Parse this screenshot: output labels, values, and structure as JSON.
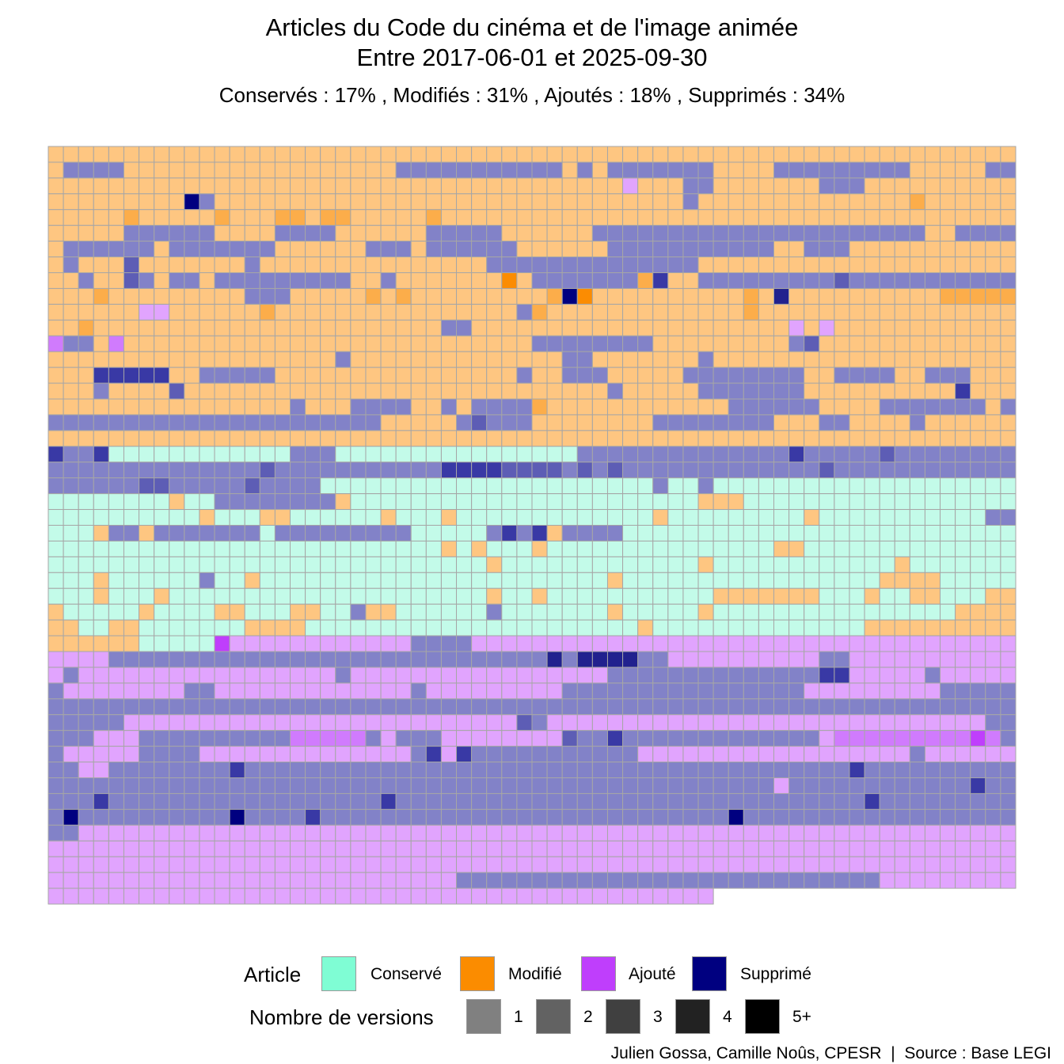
{
  "chart_data": {
    "type": "heatmap",
    "title": "Articles du Code du cinéma et de l'image animée",
    "title_line2": "Entre 2017-06-01 et 2025-09-30",
    "subtitle": "Conservés :  17% , Modifiés :  31% , Ajoutés :  18% , Supprimés :  34%",
    "share": {
      "Conservé": 17,
      "Modifié": 31,
      "Ajouté": 18,
      "Supprimé": 34
    },
    "columns": 64,
    "last_row_cells": 44,
    "status_codes": {
      "C": "Conservé",
      "M": "Modifié",
      "A": "Ajouté",
      "S": "Supprimé"
    },
    "version_codes": "digit 1-5 after status code = nombre de versions (5 = 5+)",
    "status_colors": {
      "C": [
        "#c3fbe9",
        "#8af6d4",
        "#7fd9bd",
        "#5aa08a",
        "#34695a"
      ],
      "M": [
        "#fec681",
        "#fcad4a",
        "#fb8c02",
        "#c46c00",
        "#8a4c00"
      ],
      "A": [
        "#e1a4fe",
        "#d07bfd",
        "#bf3efc",
        "#9a2fd0",
        "#6a1f90"
      ],
      "S": [
        "#8282c8",
        "#5d5db5",
        "#3939a5",
        "#21218e",
        "#000080"
      ]
    },
    "rows": [
      "M1*64",
      "M1 S1*4 M1*18 S1*11 M1 S1 M1 S1*7 M1*4 S1*9 M1*5 S1*3 M1",
      "M1*38 A1 M1*3 S1 S1 M1*7 S1*3 M1*10",
      "M1*9 S5 S1 M1*11 M1*3 M1 M1*16 S1 M1*4 M1*10 M2 M1*5",
      "M1 M1 M1 M1 M1 M2 M1 M1 M1 M1 M1 M2 M1 M1 M1 M2 M2 M1 M2 M2 M1*3 M1 M1 M2 M1*38",
      "M1*5 S1*6 M1*4 S1*4 M1*6 S1*5 M1*6 S1*22 M1*2 S1*10",
      "M1 S1*6 M1 S1*7 M1*5 M1 S1*3 M1 S1*6 M1*6 S1*11 M1 M1 S1*3 M1*5 M1*4 M1 M1 M1",
      "M1 S1 M1*3 S2 M1*7 S1 M1*9 M1 M1*4 M1 S1*14 M1 M1*13 M1*8",
      "M1 M1 S1 M1 M1 S2 S1 M1 S1 S1 M1 S1*9 M1*2 S1 M1*5 M1*2 M3 M1 S1*7 M2 S3 M1 M1 S1*9 S2 S1 S1*13",
      "M1*3 M2 M1*9 S1*3 M1*5 M2 M1 M2 M1*8 M1 M2 S5 M3 M1*10 M2 M1 S4 M1*10 M2",
      "M1*6 A1 A1 M1 M1 M1 M1 M1 M1 M2 M1 M1 M1 M1 M1 M1 M1 M1 M1 M1 M1 M1 M1 M1 M1 M1 S1 M2 M1*12 M1 M2 M1 M1 M1*14",
      "M1 M1 M2 M1 M1 M1 M1 M1 M1 M1 M1 M1 M1 M1 M1 M1 M1 M1 M1 M1 M1 M1 M1 M1 M1 M1 S1 S1 M1 M1 M1 M1 M1 M1 M1 M1 M1 M1 M1 M1 M1 M1 M1 M1 M1 M1 M1 M1 M1 A1 M1 A1 M1 M1 M1 M1 M1 M1 M1 M1 M1 M1 M1 M1",
      "A2 S1 S1 M1 A2 M1*3 M1*9 M1*3 M1*10 M1*2 S1*8 M1*8 M1 S1 S2 M1*10 M1 M1*4",
      "M1*12 M1 M1*6 S1 M1 M1 M1*2 M1*10 S1*2 M1*5 M1*2 S1 M1 M1*12 M1 M1",
      "M1 M1 M1 S3 S3 S3 S3 S3 M1 M1 S1*5 M1 M1 M1 M1 M1 M1 M1 M1 M1 M1 M1 M1 M1 M1 M1 M1 S1 M1 M1 S1*3 M1 M1 M1 M1 M1 S1*8 M1 M1 S1*4 M1 M1 S1*3 M1 M1 M1",
      "M1 M1 M1 S1 M1 M1 M1 M1 S2 M1*17 M1*4 M1 M1*6 S1 M1*5 S1*6 S1 M1*2 M1*8 S3 M1 M1",
      "M1*16 S1 M1 M1*2 S1*4 M1 M1 S1 M1 S1*4 M2 M1*12 S1*6 M1*4 S1*7 M1 S1",
      "S1*7 S1 S1 S1 S1 S1*7 S1*4 M1 M1*3 M1 S1 S2 S1*2 S1 M1*7 M1 S1*8 M1*3 S1 S1 M1*4 S1 M1*3 M1 M1 M1*5 S1*6 S3 S1 S3",
      "M1*4 M1 M1 M1 M1 M1 M1*3 M1 M1 M1 M1 M1 M1 M1 M1 M1 M1 M1 M1 M1 M1 M1 M1 M1 M1 M1 M1 M1 M1 M1 M1 M1 M1 M1 M1 M1 M1 M1 M1 M1 M1 M1 M1 M1 M1 M1 M1 M1 M1 M1 M1 M1 M1 M1 M1 M1 M1 M1 M1",
      "S3 S1 S1 S3 C1*12 S1 S1 S1 C1*16 S1*12 S1 S1 S3 S1*5 S2 S1*9",
      "S1*4 S1*3 S1*4 S1 S1 S1 S2 S1 S1 S1*4 S1*5 S3 S3 S3 S3 S2 S2 S2 S2 S1 S2 S1 S2 S1 S1 S1*3 S1*5 S1*3 S2 S1*2 S1*8",
      "S1*6 S2 S2 S1*3 S1 S1 S2 S1 S1 S1 S1 C1*8 C1*10 C1*4 S1 C1*2 S1 C1*26",
      "C1*8 M1 C1*2 S1*8 M1 C1*7 C1*10 C1*6 M1 M1 M1 C1*23 M1",
      "C1*10 M1 C1*3 M1 M1 C1*6 M1 C1*3 M1 C1*13 M1 C1*9 M1 C1*4 C1*7 S1 S1 C1*2 M1 M1 M1 M1 C1",
      "C1*3 M1 S1*2 M1 S1*7 C1 S1*8 S1 C1*5 S1 S3 S1 S3 M1 S1*4 C1*31",
      "C1*10 C1*16 M1 C1 M1 C1*2 C1 M1 C1*12 C1*3 M1 M1 C1*13 C1*5 M1 M1",
      "C1*29 M1 C1*13 M1 C1*12 M1 C1*7",
      "C1*3 M1 C1*6 S1 C1*2 M1 C1*23 M1 C1*3 C1*3 C1*1 C1*10 M1*4 C1*4",
      "C1*3 M1 C1*3 M1 C1*21 M1 C1*2 M1 C1*11 M1*6 M1 C1*3 M1 C1*2 M1 M1 C1*3 M1*4",
      "M1 C1 C1 C1*3 M1 C1*4 M1 M1 C1*3 M1 M1 C1 C1 S1 M1 M1 C1*6 S1 C1*4 C1*3 M1 C1*2 C1*3 M1 C1*10 C1*6 M1*4",
      "M1*2 C1*2 M1 M1 C1*7 M1*4 C1*16 C1*3 C1*3 M1 C1*10 C1*4 M1*14",
      "M1*6 C1 C1*4 A3 A1*12 S1*4 A1*15 A1*9 A1*18 A1",
      "A1*4 S1*14 S1 S1 S1*4 S1*9 S4 S1 S4 S4 S4 S4 S1*2 A1*7 A1*3 S1 S1 A1*11 A1 A1 A1",
      "A1 S1 A1*2 A1 A1 A1 A1 A1*5 A1*6 S1 A1*6 A1 A1 A1*8 A1 S1*14 S3 S3 A1*5 S1 A1*7 S3 A1*2 S1*4",
      "S1 A1*7 A1 S1 S1 A1*6 A1*7 S1 A1*9 S1*3 S1 S1*12 A1*9 S1*4 S1 S1*7",
      "S1*64",
      "S1*5 A1*18 A1*5 A1*3 S2 S1 A1*6 A1*10 A1*12 A1 S1*3 A1 S1*2",
      "S1*3 A1*3 S1*10 A2*5 S1 A1 S1*3 A1*8 S2 S1*2 S3 S1*13 A1 A2*8 A2 A3 A2 S1 A1 A1 S3 S1 S1 S1",
      "S1 A1*4 A1 S1*4 A1*8 A1*5 A1 S1 S3 A1 S3 S1*5 S1*6 A1*5 A1 A1*12 S1 A1*6 A1 A1 S1*3",
      "S1*2 A1 A1 S1*8 S3 S1*15 S1*3 S1*3 S1*3 S1*11 S1*5 S3 S1*5",
      "S1*5 S1*9 S1*3 S1*3 S1*3 S1*13 S1*6 S1*6 A1 S1*4 S1*3 S1*5 S3 S1*3 S3",
      "S1*3 S3 S1*13 S1*5 S3 S1*13 S1*7 S1*5 S1*6 S3 S1*4 S1*3",
      "S1 S5 S1*10 S5 S1*4 S3 S1*17 S1*10 S5 S1*9 S1*5",
      "S1 S1 A1*62",
      "A1*64",
      "A1*64",
      "A1*27 S1*18 S1*10 A1*9",
      "A1*44"
    ]
  },
  "legend": {
    "status_title": "Article",
    "status_items": [
      {
        "label": "Conservé",
        "color": "#7ffdd4"
      },
      {
        "label": "Modifié",
        "color": "#fb8c00"
      },
      {
        "label": "Ajouté",
        "color": "#bf3efc"
      },
      {
        "label": "Supprimé",
        "color": "#000080"
      }
    ],
    "versions_title": "Nombre de versions",
    "versions_items": [
      {
        "label": "1",
        "color": "#808080"
      },
      {
        "label": "2",
        "color": "#626262"
      },
      {
        "label": "3",
        "color": "#404040"
      },
      {
        "label": "4",
        "color": "#222222"
      },
      {
        "label": "5+",
        "color": "#000000"
      }
    ]
  },
  "caption": "Julien Gossa, Camille Noûs, CPESR  |  Source : Base LEGI"
}
